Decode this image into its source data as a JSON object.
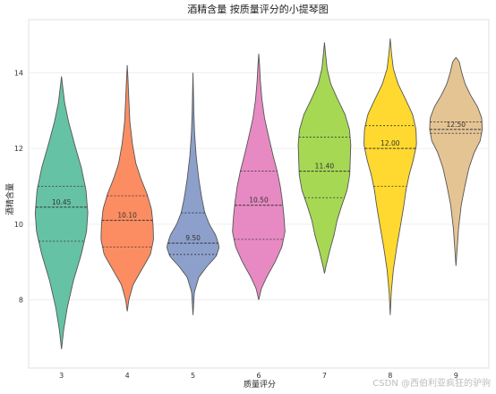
{
  "chart_data": {
    "type": "violin",
    "title": "酒精含量 按质量评分的小提琴图",
    "xlabel": "质量评分",
    "ylabel": "酒精含量",
    "ylim": [
      6.2,
      15.4
    ],
    "yticks": [
      8,
      10,
      12,
      14
    ],
    "grid": "horizontal",
    "categories": [
      "3",
      "4",
      "5",
      "6",
      "7",
      "8",
      "9"
    ],
    "colors": [
      "#66c2a5",
      "#fc8d62",
      "#8da0cb",
      "#e78ac3",
      "#a6d854",
      "#ffd92f",
      "#e5c494"
    ],
    "series": [
      {
        "category": "3",
        "median": 10.45,
        "q1": 9.55,
        "q3": 11.0,
        "min": 6.7,
        "max": 13.9,
        "profile": [
          [
            6.7,
            0.0
          ],
          [
            7.2,
            0.08
          ],
          [
            7.8,
            0.22
          ],
          [
            8.5,
            0.45
          ],
          [
            9.2,
            0.75
          ],
          [
            9.8,
            0.95
          ],
          [
            10.3,
            1.0
          ],
          [
            10.9,
            0.93
          ],
          [
            11.5,
            0.75
          ],
          [
            12.1,
            0.5
          ],
          [
            12.7,
            0.27
          ],
          [
            13.2,
            0.12
          ],
          [
            13.6,
            0.05
          ],
          [
            13.9,
            0.0
          ]
        ]
      },
      {
        "category": "4",
        "median": 10.1,
        "q1": 9.4,
        "q3": 10.75,
        "min": 7.7,
        "max": 14.2,
        "profile": [
          [
            7.7,
            0.0
          ],
          [
            8.0,
            0.06
          ],
          [
            8.4,
            0.22
          ],
          [
            8.8,
            0.55
          ],
          [
            9.2,
            0.88
          ],
          [
            9.6,
            1.0
          ],
          [
            10.0,
            0.98
          ],
          [
            10.4,
            0.92
          ],
          [
            10.8,
            0.75
          ],
          [
            11.2,
            0.52
          ],
          [
            11.6,
            0.33
          ],
          [
            12.1,
            0.2
          ],
          [
            12.7,
            0.1
          ],
          [
            13.3,
            0.06
          ],
          [
            13.8,
            0.03
          ],
          [
            14.2,
            0.0
          ]
        ]
      },
      {
        "category": "5",
        "median": 9.5,
        "q1": 9.2,
        "q3": 10.3,
        "min": 7.6,
        "max": 14.0,
        "profile": [
          [
            7.6,
            0.0
          ],
          [
            8.2,
            0.05
          ],
          [
            8.6,
            0.22
          ],
          [
            8.9,
            0.55
          ],
          [
            9.15,
            0.88
          ],
          [
            9.4,
            1.0
          ],
          [
            9.7,
            0.87
          ],
          [
            10.0,
            0.62
          ],
          [
            10.3,
            0.45
          ],
          [
            10.7,
            0.33
          ],
          [
            11.2,
            0.22
          ],
          [
            11.8,
            0.12
          ],
          [
            12.4,
            0.06
          ],
          [
            13.0,
            0.03
          ],
          [
            13.5,
            0.015
          ],
          [
            14.0,
            0.0
          ]
        ]
      },
      {
        "category": "6",
        "median": 10.5,
        "q1": 9.6,
        "q3": 11.4,
        "min": 8.0,
        "max": 14.5,
        "profile": [
          [
            8.0,
            0.0
          ],
          [
            8.3,
            0.1
          ],
          [
            8.6,
            0.3
          ],
          [
            9.0,
            0.62
          ],
          [
            9.4,
            0.88
          ],
          [
            9.8,
            1.0
          ],
          [
            10.2,
            0.96
          ],
          [
            10.6,
            0.9
          ],
          [
            11.0,
            0.82
          ],
          [
            11.4,
            0.7
          ],
          [
            11.8,
            0.55
          ],
          [
            12.3,
            0.38
          ],
          [
            12.8,
            0.22
          ],
          [
            13.3,
            0.12
          ],
          [
            13.8,
            0.06
          ],
          [
            14.2,
            0.03
          ],
          [
            14.5,
            0.0
          ]
        ]
      },
      {
        "category": "7",
        "median": 11.4,
        "q1": 10.7,
        "q3": 12.3,
        "min": 8.7,
        "max": 14.8,
        "profile": [
          [
            8.7,
            0.0
          ],
          [
            8.9,
            0.06
          ],
          [
            9.3,
            0.2
          ],
          [
            9.7,
            0.36
          ],
          [
            10.1,
            0.48
          ],
          [
            10.5,
            0.66
          ],
          [
            10.9,
            0.86
          ],
          [
            11.3,
            0.96
          ],
          [
            11.7,
            0.98
          ],
          [
            12.1,
            1.0
          ],
          [
            12.5,
            0.95
          ],
          [
            12.9,
            0.78
          ],
          [
            13.3,
            0.5
          ],
          [
            13.7,
            0.24
          ],
          [
            14.1,
            0.1
          ],
          [
            14.5,
            0.04
          ],
          [
            14.8,
            0.0
          ]
        ]
      },
      {
        "category": "8",
        "median": 12.0,
        "q1": 11.0,
        "q3": 12.6,
        "min": 7.6,
        "max": 14.9,
        "profile": [
          [
            7.6,
            0.0
          ],
          [
            8.2,
            0.04
          ],
          [
            8.8,
            0.12
          ],
          [
            9.4,
            0.25
          ],
          [
            10.0,
            0.4
          ],
          [
            10.5,
            0.52
          ],
          [
            10.9,
            0.6
          ],
          [
            11.3,
            0.72
          ],
          [
            11.7,
            0.88
          ],
          [
            12.1,
            1.0
          ],
          [
            12.5,
            0.98
          ],
          [
            12.9,
            0.85
          ],
          [
            13.3,
            0.58
          ],
          [
            13.7,
            0.3
          ],
          [
            14.1,
            0.12
          ],
          [
            14.5,
            0.05
          ],
          [
            14.9,
            0.0
          ]
        ]
      },
      {
        "category": "9",
        "median": 12.5,
        "q1": 12.4,
        "q3": 12.7,
        "min": 8.9,
        "max": 14.4,
        "profile": [
          [
            8.9,
            0.0
          ],
          [
            9.3,
            0.04
          ],
          [
            9.9,
            0.1
          ],
          [
            10.5,
            0.2
          ],
          [
            11.0,
            0.34
          ],
          [
            11.5,
            0.5
          ],
          [
            11.9,
            0.7
          ],
          [
            12.2,
            0.92
          ],
          [
            12.5,
            1.0
          ],
          [
            12.8,
            0.98
          ],
          [
            13.1,
            0.82
          ],
          [
            13.4,
            0.56
          ],
          [
            13.7,
            0.35
          ],
          [
            14.0,
            0.22
          ],
          [
            14.3,
            0.12
          ],
          [
            14.4,
            0.0
          ]
        ]
      }
    ]
  },
  "watermark": "CSDN @西伯利亚疯狂的驴驹"
}
